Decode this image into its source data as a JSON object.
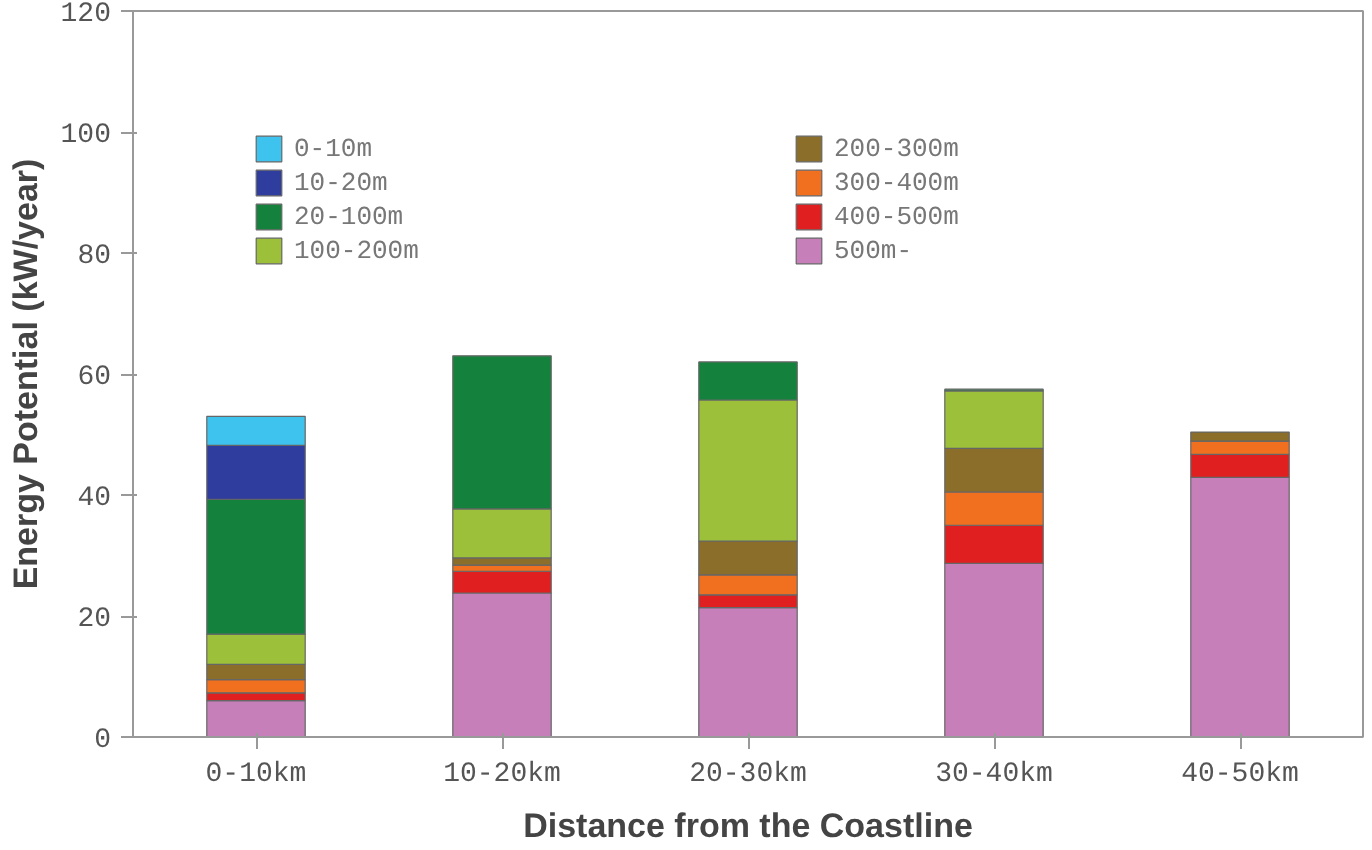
{
  "chart_data": {
    "type": "bar",
    "stacked": true,
    "xlabel": "Distance from the Coastline",
    "ylabel": "Energy Potential (kW/year)",
    "categories": [
      "0-10km",
      "10-20km",
      "20-30km",
      "30-40km",
      "40-50km"
    ],
    "ylim": [
      0,
      120
    ],
    "yticks": [
      0,
      20,
      40,
      60,
      80,
      100,
      120
    ],
    "grid": false,
    "legend": "top",
    "series": [
      {
        "name": "500m-",
        "color": "#c77fba",
        "values": [
          6,
          23.8,
          21.4,
          28.7,
          42.9
        ]
      },
      {
        "name": "400-500m",
        "color": "#e02020",
        "values": [
          1.3,
          3.6,
          2.1,
          6.3,
          3.8
        ]
      },
      {
        "name": "300-400m",
        "color": "#f07020",
        "values": [
          2.2,
          1,
          3.3,
          5.5,
          2.2
        ]
      },
      {
        "name": "200-300m",
        "color": "#8a6e2a",
        "values": [
          2.5,
          1.2,
          5.6,
          7.2,
          1.5
        ]
      },
      {
        "name": "100-200m",
        "color": "#9cc03a",
        "values": [
          5,
          8.1,
          23.3,
          9.5,
          null
        ]
      },
      {
        "name": "20-100m",
        "color": "#14823c",
        "values": [
          22.3,
          25.3,
          6.3,
          0.3,
          null
        ]
      },
      {
        "name": "10-20m",
        "color": "#2e3d9e",
        "values": [
          8.9,
          null,
          null,
          null,
          null
        ]
      },
      {
        "name": "0-10m",
        "color": "#3ec3ef",
        "values": [
          4.8,
          null,
          null,
          null,
          null
        ]
      }
    ]
  }
}
